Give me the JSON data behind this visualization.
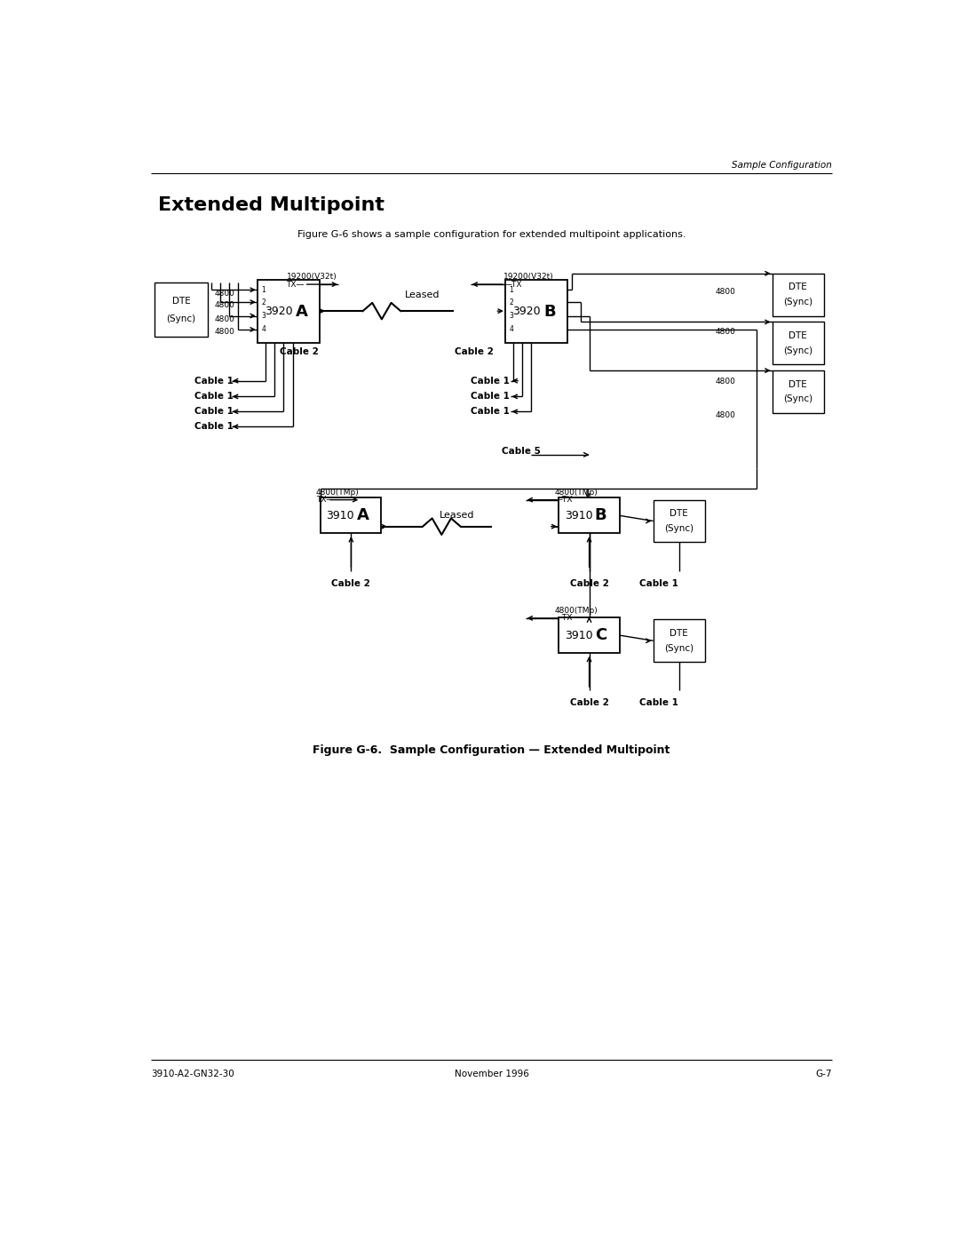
{
  "page_width": 10.8,
  "page_height": 13.97,
  "bg_color": "#ffffff",
  "header_text": "Sample Configuration",
  "title": "Extended Multipoint",
  "subtitle": "Figure G-6 shows a sample configuration for extended multipoint applications.",
  "figure_caption": "Figure G-6.  Sample Configuration — Extended Multipoint",
  "footer_left": "3910-A2-GN32-30",
  "footer_center": "November 1996",
  "footer_right": "G-7"
}
